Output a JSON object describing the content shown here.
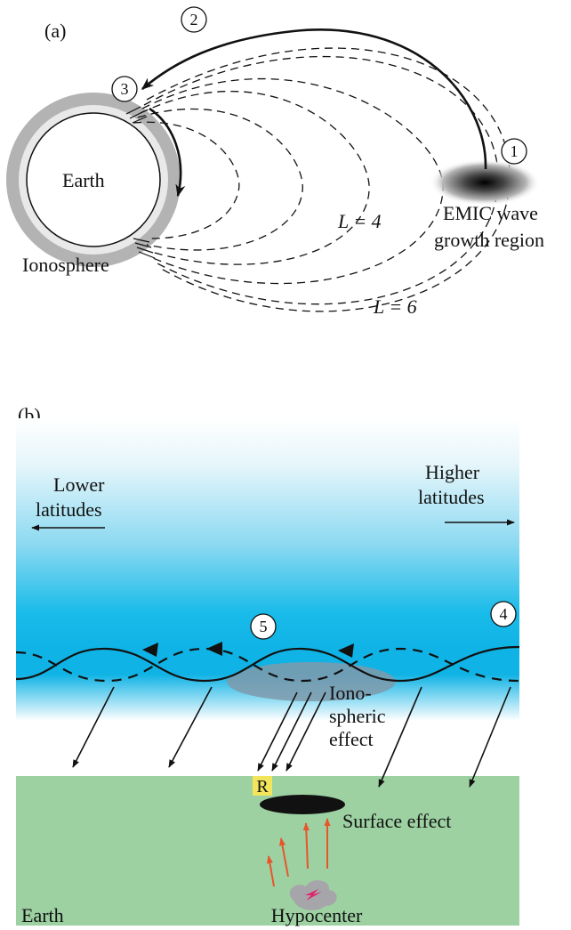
{
  "panel_a": {
    "label": "(a)",
    "earth_label": "Earth",
    "ionosphere_label": "Ionosphere",
    "source_line1": "EMIC wave",
    "source_line2": "growth region",
    "shell_inner_label": "L = 4",
    "shell_outer_label": "L = 6",
    "steps": [
      "1",
      "2",
      "3"
    ]
  },
  "panel_b": {
    "label": "(b)",
    "lower_line1": "Lower",
    "lower_line2": "latitudes",
    "higher_line1": "Higher",
    "higher_line2": "latitudes",
    "iono_line1": "Iono-",
    "iono_line2": "spheric",
    "iono_line3": "effect",
    "receiver_label": "R",
    "surface_effect_label": "Surface effect",
    "earth_label": "Earth",
    "hypocenter_label": "Hypocenter",
    "steps": [
      "4",
      "5"
    ]
  },
  "colors": {
    "sky_light": "#eaf7fb",
    "sky_cyan": "#11b6e6",
    "ground": "#9dd1a2",
    "receiver_box": "#f2e45b",
    "seismic_arrows": "#e8552a",
    "hypocenter_blob": "#a7a3ab",
    "ionospheric_patch": "#7f9aab"
  }
}
